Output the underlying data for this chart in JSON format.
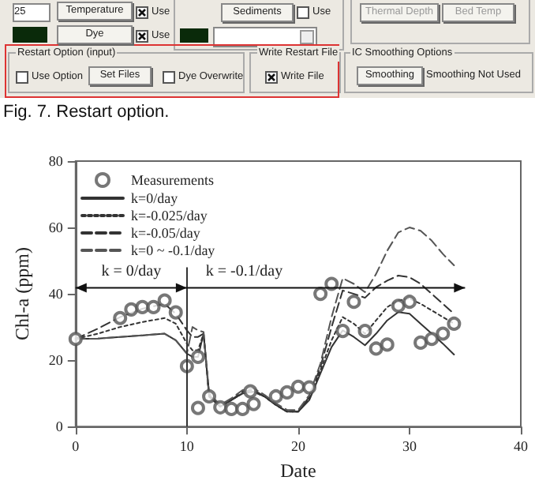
{
  "chart_data": [
    {
      "type": "other",
      "annotations": [
        "25",
        "Temperature",
        "Use",
        "Dye",
        "Use",
        "Sediments",
        "Use",
        "Thermal Depth",
        "Bed Temp",
        "Restart Option (input)",
        "Use Option",
        "Set Files",
        "Dye Overwrite",
        "Write Restart File",
        "Write File",
        "IC Smoothing Options",
        "Smoothing",
        "Smoothing Not Used",
        "Fig. 7. Restart option."
      ]
    },
    {
      "type": "line",
      "xlabel": "Date",
      "ylabel": "Chl-a (ppm)",
      "xlim": [
        0,
        40
      ],
      "xticks": [
        0,
        10,
        20,
        30,
        40
      ],
      "ylim": [
        0,
        80
      ],
      "yticks": [
        0,
        20,
        40,
        60,
        80
      ],
      "grid": false,
      "legend": "top left",
      "ref_lines": [
        {
          "axis": "x",
          "value": 10,
          "color": "#333333"
        }
      ],
      "annotations": [
        "k = 0/day",
        "k = -0.1/day"
      ],
      "series": [
        {
          "name": "Measurements",
          "type": "scatter",
          "marker": "circle",
          "color": "#555555",
          "x": [
            0,
            4,
            5,
            6,
            7,
            8,
            9,
            10,
            11,
            11,
            12,
            13,
            14,
            15,
            15.7,
            16,
            18,
            19,
            20,
            21,
            22,
            23,
            24,
            25,
            26,
            27,
            28,
            29,
            30,
            31,
            32,
            33,
            34
          ],
          "values": [
            26.4,
            32.7,
            35.3,
            36,
            36,
            38,
            34.4,
            18.2,
            5.6,
            21,
            9.1,
            5.8,
            5.3,
            5.3,
            10.6,
            6.8,
            9.1,
            10.3,
            12,
            11.8,
            40,
            43,
            28.8,
            37.6,
            28.8,
            23.5,
            24.7,
            36.4,
            37.6,
            25.3,
            26.4,
            28,
            31
          ]
        },
        {
          "name": "k=0/day",
          "type": "line",
          "line_style": "solid",
          "color": "#333333",
          "x": [
            0,
            2,
            4,
            6,
            8,
            9,
            10,
            10.5,
            11,
            11.5,
            12,
            13,
            14,
            15,
            16,
            17,
            18,
            19,
            20,
            21,
            22,
            23,
            24,
            25,
            26,
            27,
            28,
            29,
            30,
            31,
            32,
            33,
            34
          ],
          "values": [
            26.4,
            26.5,
            27,
            27.5,
            28,
            26,
            22,
            21,
            21,
            28,
            9,
            6,
            8,
            10,
            10.5,
            9,
            6.5,
            4.5,
            4.5,
            8,
            16,
            24,
            29,
            27,
            24.5,
            28,
            32,
            34.5,
            34,
            31,
            28,
            25,
            21.7
          ]
        },
        {
          "name": "k=-0.025/day",
          "type": "line",
          "line_style": "dotted",
          "color": "#333333",
          "x": [
            0,
            2,
            4,
            6,
            8,
            9,
            10,
            10.5,
            11,
            11.5,
            12,
            13,
            14,
            15,
            16,
            17,
            18,
            19,
            20,
            21,
            22,
            23,
            24,
            25,
            26,
            27,
            28,
            29,
            30,
            31,
            32,
            33,
            34
          ],
          "values": [
            26.4,
            28,
            30,
            31.5,
            32.7,
            31,
            25,
            23,
            23,
            28,
            9,
            6,
            8,
            10,
            10.5,
            9,
            6.5,
            4.5,
            4.5,
            8.5,
            17,
            26,
            33,
            31,
            28,
            32,
            36,
            38,
            38.6,
            37,
            35,
            33,
            31
          ]
        },
        {
          "name": "k=-0.05/day",
          "type": "line",
          "line_style": "dashed",
          "color": "#333333",
          "x": [
            0,
            2,
            4,
            6,
            8,
            9,
            10,
            10.5,
            11,
            11.5,
            12,
            13,
            14,
            15,
            16,
            17,
            18,
            19,
            20,
            21,
            22,
            23,
            24,
            25,
            26,
            27,
            28,
            29,
            30,
            31,
            32,
            33,
            34
          ],
          "values": [
            26.4,
            29.5,
            33,
            35.5,
            37,
            34,
            29,
            27,
            27,
            28,
            9.5,
            6,
            8,
            10.5,
            11,
            9,
            6.5,
            4.5,
            4.5,
            9,
            18,
            30,
            41,
            40,
            38.8,
            42,
            44,
            45.5,
            45,
            43,
            40,
            37,
            34
          ]
        },
        {
          "name": "k=0 ~ -0.1/day",
          "type": "line",
          "line_style": "dashed",
          "color": "#555555",
          "x": [
            0,
            2,
            4,
            6,
            8,
            9,
            10,
            10.5,
            11,
            11.5,
            12,
            13,
            14,
            15,
            16,
            17,
            18,
            19,
            20,
            21,
            22,
            23,
            24,
            25,
            26,
            27,
            28,
            29,
            30,
            31,
            32,
            33,
            34
          ],
          "values": [
            26.4,
            26.5,
            27,
            27.5,
            28,
            26,
            22,
            30,
            29,
            28.5,
            10,
            6.5,
            8.5,
            11,
            11.5,
            9.5,
            7,
            5,
            5,
            9.5,
            19,
            33,
            44.7,
            43,
            40.5,
            46,
            53,
            58.5,
            60,
            59,
            56,
            52,
            48.6
          ]
        }
      ]
    }
  ]
}
